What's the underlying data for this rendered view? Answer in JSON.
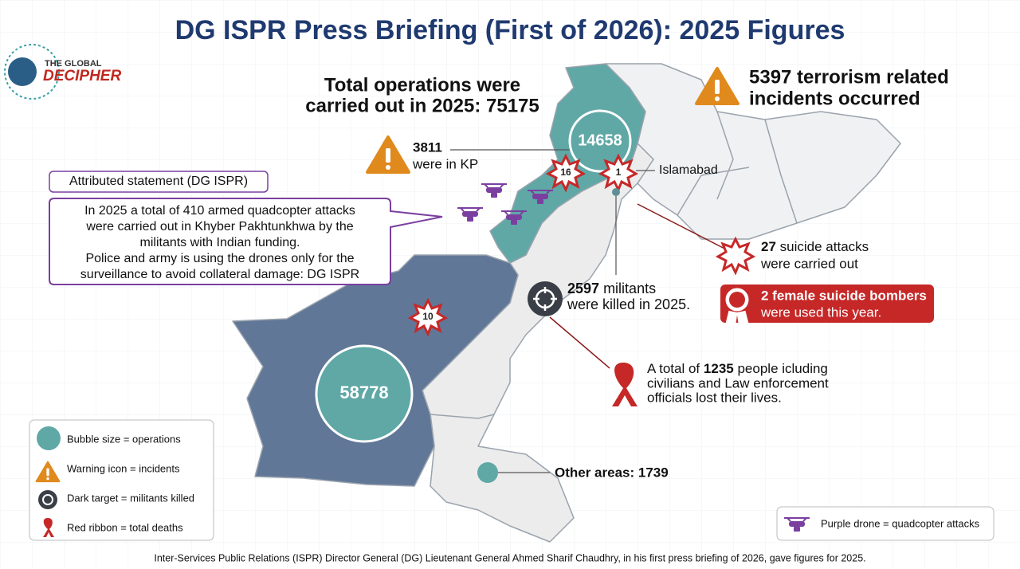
{
  "title": "DG ISPR Press Briefing (First of 2026): 2025 Figures",
  "logo": {
    "line1": "THE GLOBAL",
    "line2": "DECIPHER"
  },
  "total_operations": {
    "line1": "Total operations were",
    "line2": "carried out in 2025: 75175"
  },
  "incidents": {
    "line1": "5397 terrorism related",
    "line2": "incidents occurred"
  },
  "kp_incidents": {
    "number": "3811",
    "text": "were in KP"
  },
  "bubbles": {
    "kp": "14658",
    "balochistan": "58778"
  },
  "badges": {
    "kp": "16",
    "islamabad": "1",
    "balochistan": "10"
  },
  "islamabad": "Islamabad",
  "statement": {
    "heading": "Attributed statement (DG ISPR)",
    "lines": [
      "In 2025 a total of 410 armed quadcopter attacks",
      "were carried out in Khyber Pakhtunkhwa by the",
      "militants with Indian funding.",
      "Police and army is using the drones only for the",
      "surveillance to avoid collateral damage: DG ISPR"
    ]
  },
  "suicide_attacks": {
    "number": "27",
    "line1": "suicide attacks",
    "line2": "were carried out"
  },
  "female_bombers": {
    "line1": "2 female suicide bombers",
    "line2": "were used this year."
  },
  "militants": {
    "number": "2597",
    "line1": "militants",
    "line2": "were killed in 2025."
  },
  "deaths": {
    "prefix": "A total of",
    "number": "1235",
    "line1": "people icluding",
    "line2": "civilians and Law enforcement",
    "line3": "officials lost their lives."
  },
  "other_areas": "Other areas: 1739",
  "legend": [
    "Bubble size = operations",
    "Warning icon = incidents",
    "Dark target = militants killed",
    "Red ribbon = total deaths"
  ],
  "drone_legend": "Purple drone = quadcopter attacks",
  "footer": "Inter-Services Public Relations (ISPR) Director General (DG) Lieutenant General Ahmed Sharif Chaudhry, in his first press briefing of 2026, gave figures for 2025."
}
